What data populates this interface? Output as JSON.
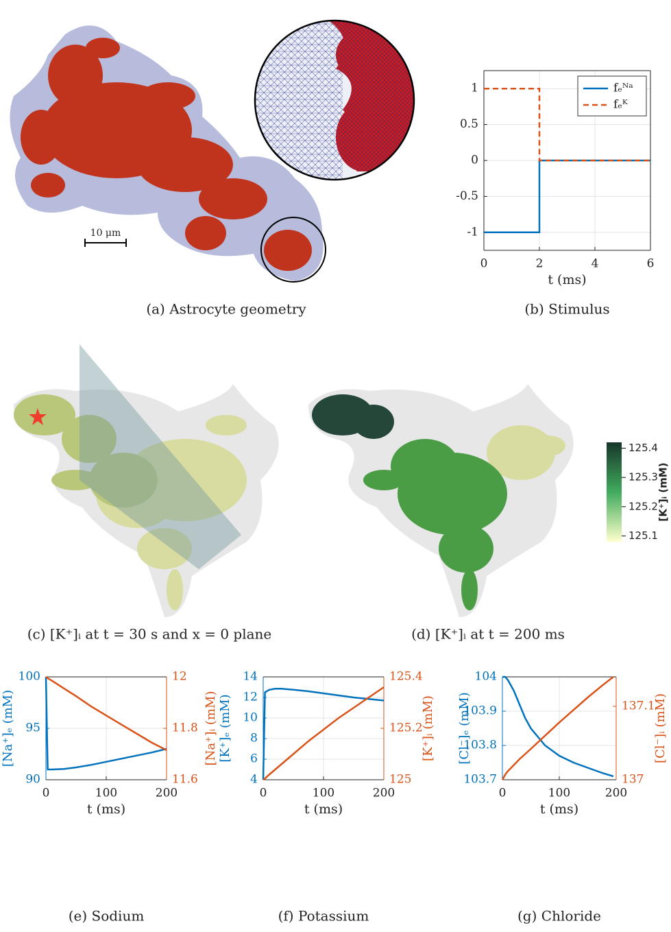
{
  "images": [
    {
      "caption": "(a) Astrocyte geometry",
      "scale_bar": "10 μm"
    },
    {
      "caption": "(c) [K⁺]ᵢ at t = 30 s and x = 0 plane"
    },
    {
      "caption": "(d) [K⁺]ᵢ at t = 200 ms"
    }
  ],
  "colorbar": {
    "label": "[K⁺]ᵢ (mM)",
    "lim": [
      125.08,
      125.42
    ],
    "ticks": [
      125.1,
      125.2,
      125.3,
      125.4
    ],
    "colors": [
      "#ffffcc",
      "#41ab5d",
      "#17362a"
    ]
  },
  "chart_data": [
    {
      "type": "line",
      "caption": "(b) Stimulus",
      "xlabel": "t (ms)",
      "x": [
        0,
        2,
        2,
        6
      ],
      "xlim": [
        0,
        6
      ],
      "xticks": [
        0,
        2,
        4,
        6
      ],
      "ylim": [
        -1.25,
        1.25
      ],
      "yticks": [
        -1,
        -0.5,
        0,
        0.5,
        1
      ],
      "grid": true,
      "legend": "upper right",
      "series": [
        {
          "name": "fₑᴺᵃ",
          "color": "#0072bd",
          "linestyle": "solid",
          "values": [
            -1,
            -1,
            0,
            0
          ]
        },
        {
          "name": "fₑᴷ",
          "color": "#d95319",
          "linestyle": "dashed",
          "values": [
            1,
            1,
            0,
            0
          ]
        }
      ]
    },
    {
      "type": "line",
      "caption": "(e) Sodium",
      "xlabel": "t (ms)",
      "ylabel": "[Na⁺]ₑ (mM)",
      "y2label": "[Na⁺]ᵢ (mM)",
      "x": [
        0,
        3,
        10,
        30,
        50,
        75,
        100,
        125,
        150,
        175,
        200
      ],
      "xlim": [
        0,
        200
      ],
      "xticks": [
        0,
        100,
        200
      ],
      "ylim": [
        90,
        100
      ],
      "yticks": [
        90,
        95,
        100
      ],
      "y2lim": [
        11.6,
        12
      ],
      "y2ticks": [
        11.6,
        11.8,
        12
      ],
      "grid": true,
      "series": [
        {
          "color": "#0072bd",
          "values": [
            100,
            91,
            91,
            91.05,
            91.2,
            91.45,
            91.75,
            92.05,
            92.35,
            92.65,
            93
          ]
        },
        {
          "color": "#d95319",
          "axis": "y2",
          "values": [
            12,
            11.995,
            11.985,
            11.955,
            11.925,
            11.885,
            11.85,
            11.815,
            11.78,
            11.745,
            11.715
          ]
        }
      ]
    },
    {
      "type": "line",
      "caption": "(f) Potassium",
      "xlabel": "t (ms)",
      "ylabel": "[K⁺]ₑ (mM)",
      "y2label": "[K⁺]ᵢ (mM)",
      "x": [
        0,
        3,
        10,
        20,
        30,
        50,
        75,
        100,
        125,
        150,
        175,
        200
      ],
      "xlim": [
        0,
        200
      ],
      "xticks": [
        0,
        100,
        200
      ],
      "ylim": [
        4,
        14
      ],
      "yticks": [
        4,
        6,
        8,
        10,
        12,
        14
      ],
      "y2lim": [
        125,
        125.4
      ],
      "y2ticks": [
        125,
        125.2,
        125.4
      ],
      "grid": true,
      "series": [
        {
          "color": "#0072bd",
          "values": [
            4,
            12.5,
            12.75,
            12.85,
            12.85,
            12.75,
            12.6,
            12.4,
            12.2,
            12,
            11.85,
            11.7
          ]
        },
        {
          "color": "#d95319",
          "axis": "y2",
          "values": [
            125,
            125.005,
            125.02,
            125.04,
            125.06,
            125.1,
            125.15,
            125.195,
            125.24,
            125.28,
            125.32,
            125.36
          ]
        }
      ]
    },
    {
      "type": "line",
      "caption": "(g) Chloride",
      "xlabel": "t (ms)",
      "ylabel": "[Cl⁻]ₑ (mM)",
      "y2label": "[Cl⁻]ᵢ (mM)",
      "x": [
        0,
        5,
        10,
        20,
        30,
        40,
        50,
        75,
        100,
        125,
        150,
        175,
        195
      ],
      "xlim": [
        0,
        200
      ],
      "xticks": [
        0,
        100,
        200
      ],
      "ylim": [
        103.7,
        104
      ],
      "yticks": [
        103.7,
        103.8,
        103.9,
        104
      ],
      "y2lim": [
        137,
        137.14
      ],
      "y2ticks": [
        137,
        137.1
      ],
      "grid": true,
      "series": [
        {
          "color": "#0072bd",
          "values": [
            104,
            104,
            103.99,
            103.96,
            103.92,
            103.88,
            103.85,
            103.8,
            103.77,
            103.75,
            103.735,
            103.72,
            103.71
          ]
        },
        {
          "color": "#d95319",
          "axis": "y2",
          "values": [
            137,
            137.007,
            137.012,
            137.02,
            137.028,
            137.035,
            137.042,
            137.06,
            137.078,
            137.095,
            137.112,
            137.128,
            137.14
          ]
        }
      ]
    }
  ]
}
